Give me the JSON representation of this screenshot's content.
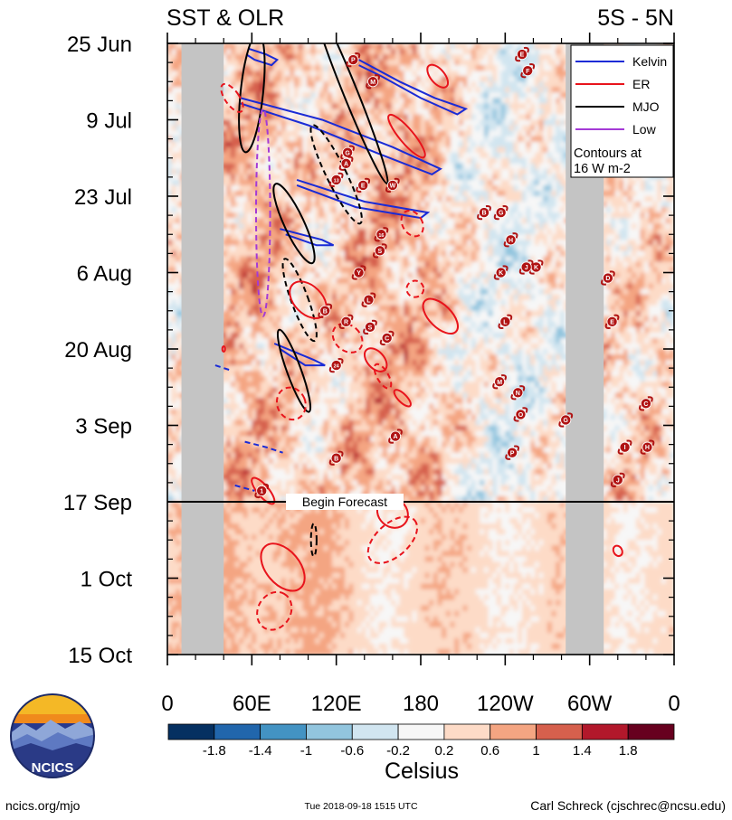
{
  "title_left": "SST & OLR",
  "title_right": "5S - 5N",
  "footer": {
    "site": "ncics.org/mjo",
    "timestamp": "Tue 2018-09-18 1515 UTC",
    "author": "Carl Schreck (cjschrec@ncsu.edu)"
  },
  "logo": {
    "text": "NCICS"
  },
  "colors": {
    "kelvin": "#1a2bd6",
    "er": "#e8141c",
    "mjo": "#000000",
    "low": "#a43ad6",
    "land": "#c4c4c4",
    "storm": "#b01313"
  },
  "legend": {
    "items": [
      {
        "label": "Kelvin",
        "color": "#1a2bd6"
      },
      {
        "label": "ER",
        "color": "#e8141c"
      },
      {
        "label": "MJO",
        "color": "#000000"
      },
      {
        "label": "Low",
        "color": "#a43ad6"
      }
    ],
    "note_line1": "Contours at",
    "note_line2": "16 W m-2",
    "position": "top-right"
  },
  "chart_data": {
    "type": "heatmap",
    "variable": "SST anomaly",
    "x_tick_labels": [
      "0",
      "60E",
      "120E",
      "180",
      "120W",
      "60W",
      "0"
    ],
    "x_tick_lons": [
      0,
      60,
      120,
      180,
      240,
      300,
      360
    ],
    "xlim": [
      0,
      360
    ],
    "y_tick_labels": [
      "25 Jun",
      "9 Jul",
      "23 Jul",
      "6 Aug",
      "20 Aug",
      "3 Sep",
      "17 Sep",
      "1 Oct",
      "15 Oct"
    ],
    "y_tick_days": [
      0,
      14,
      28,
      42,
      56,
      70,
      84,
      98,
      112
    ],
    "ylim_days": [
      0,
      112
    ],
    "forecast": {
      "day": 84,
      "label": "Begin Forecast"
    },
    "colorbar": {
      "label": "Celsius",
      "tick_labels": [
        "-1.8",
        "-1.4",
        "-1",
        "-0.6",
        "-0.2",
        "0.2",
        "0.6",
        "1",
        "1.4",
        "1.8"
      ],
      "bins": [
        -2.2,
        -1.8,
        -1.4,
        -1.0,
        -0.6,
        -0.2,
        0.2,
        0.6,
        1.0,
        1.4,
        1.8,
        2.2
      ],
      "colors": [
        "#053061",
        "#2166ac",
        "#4393c3",
        "#92c5de",
        "#d1e5f0",
        "#f7f7f7",
        "#fddbc7",
        "#f4a582",
        "#d6604d",
        "#b2182b",
        "#67001f"
      ]
    },
    "land_bands": [
      {
        "lon0": 10,
        "lon1": 40
      },
      {
        "lon0": 283,
        "lon1": 310
      }
    ],
    "contours": [
      {
        "type": "kelvin",
        "style": "solid",
        "path": [
          [
            58,
            1
          ],
          [
            70,
            2
          ],
          [
            78,
            3
          ],
          [
            74,
            4
          ],
          [
            62,
            3
          ],
          [
            56,
            2
          ]
        ]
      },
      {
        "type": "kelvin",
        "style": "solid",
        "path": [
          [
            136,
            3
          ],
          [
            165,
            7
          ],
          [
            190,
            10
          ],
          [
            212,
            12
          ],
          [
            206,
            13
          ],
          [
            180,
            10
          ],
          [
            152,
            6
          ],
          [
            136,
            4
          ]
        ]
      },
      {
        "type": "kelvin",
        "style": "solid",
        "path": [
          [
            52,
            10
          ],
          [
            110,
            14
          ],
          [
            160,
            19
          ],
          [
            194,
            23
          ],
          [
            188,
            24
          ],
          [
            148,
            20
          ],
          [
            100,
            15
          ],
          [
            52,
            11
          ]
        ]
      },
      {
        "type": "kelvin",
        "style": "solid",
        "path": [
          [
            92,
            25
          ],
          [
            140,
            29
          ],
          [
            185,
            31
          ],
          [
            180,
            32
          ],
          [
            134,
            30
          ],
          [
            92,
            26
          ]
        ]
      },
      {
        "type": "kelvin",
        "style": "solid",
        "path": [
          [
            80,
            34
          ],
          [
            110,
            36
          ],
          [
            118,
            37
          ],
          [
            106,
            37
          ],
          [
            84,
            35
          ]
        ]
      },
      {
        "type": "kelvin",
        "style": "solid",
        "path": [
          [
            76,
            55
          ],
          [
            104,
            58
          ],
          [
            112,
            59
          ],
          [
            98,
            59
          ],
          [
            80,
            56
          ]
        ]
      },
      {
        "type": "kelvin",
        "style": "dashed",
        "path": [
          [
            34,
            59
          ],
          [
            46,
            60
          ]
        ]
      },
      {
        "type": "kelvin",
        "style": "dashed",
        "path": [
          [
            55,
            73
          ],
          [
            70,
            74
          ],
          [
            82,
            75
          ]
        ]
      },
      {
        "type": "kelvin",
        "style": "dashed",
        "path": [
          [
            48,
            81
          ],
          [
            62,
            82
          ]
        ]
      },
      {
        "type": "mjo",
        "style": "solid",
        "ellipse": {
          "lon": 60,
          "day": 9,
          "rx": 8,
          "ry": 11,
          "rot": 6
        }
      },
      {
        "type": "mjo",
        "style": "solid",
        "ellipse": {
          "lon": 130,
          "day": 9,
          "rx": 5,
          "ry": 18,
          "rot": -22
        }
      },
      {
        "type": "mjo",
        "style": "dashed",
        "ellipse": {
          "lon": 120,
          "day": 24,
          "rx": 7,
          "ry": 10,
          "rot": -26
        }
      },
      {
        "type": "mjo",
        "style": "solid",
        "ellipse": {
          "lon": 90,
          "day": 33,
          "rx": 7,
          "ry": 8,
          "rot": -25
        }
      },
      {
        "type": "mjo",
        "style": "dashed",
        "ellipse": {
          "lon": 94,
          "day": 47,
          "rx": 6,
          "ry": 8,
          "rot": -20
        }
      },
      {
        "type": "mjo",
        "style": "solid",
        "ellipse": {
          "lon": 90,
          "day": 60,
          "rx": 5,
          "ry": 8,
          "rot": -20
        }
      },
      {
        "type": "mjo",
        "style": "dashed",
        "ellipse": {
          "lon": 104,
          "day": 91,
          "rx": 2,
          "ry": 3,
          "rot": 0
        }
      },
      {
        "type": "er",
        "style": "dashed",
        "ellipse": {
          "lon": 46,
          "day": 10,
          "rx": 5,
          "ry": 3,
          "rot": -35
        }
      },
      {
        "type": "er",
        "style": "solid",
        "ellipse": {
          "lon": 192,
          "day": 6,
          "rx": 5,
          "ry": 2.5,
          "rot": -40
        }
      },
      {
        "type": "er",
        "style": "solid",
        "ellipse": {
          "lon": 170,
          "day": 17,
          "rx": 5,
          "ry": 5,
          "rot": -40
        }
      },
      {
        "type": "er",
        "style": "dashed",
        "ellipse": {
          "lon": 174,
          "day": 33,
          "rx": 7,
          "ry": 2.5,
          "rot": -30
        }
      },
      {
        "type": "er",
        "style": "dashed",
        "ellipse": {
          "lon": 176,
          "day": 45,
          "rx": 6,
          "ry": 1.5,
          "rot": 0
        }
      },
      {
        "type": "er",
        "style": "solid",
        "ellipse": {
          "lon": 194,
          "day": 50,
          "rx": 8,
          "ry": 4,
          "rot": -45
        }
      },
      {
        "type": "er",
        "style": "dashed",
        "ellipse": {
          "lon": 128,
          "day": 54,
          "rx": 9,
          "ry": 3,
          "rot": -48
        }
      },
      {
        "type": "er",
        "style": "solid",
        "ellipse": {
          "lon": 148,
          "day": 58,
          "rx": 6,
          "ry": 2.5,
          "rot": -42
        }
      },
      {
        "type": "er",
        "style": "solid",
        "ellipse": {
          "lon": 100,
          "day": 47,
          "rx": 10,
          "ry": 4,
          "rot": -45
        }
      },
      {
        "type": "er",
        "style": "dashed",
        "ellipse": {
          "lon": 153,
          "day": 61,
          "rx": 4,
          "ry": 2.5,
          "rot": -30
        }
      },
      {
        "type": "er",
        "style": "dashed",
        "ellipse": {
          "lon": 88,
          "day": 66,
          "rx": 10,
          "ry": 3,
          "rot": -22
        }
      },
      {
        "type": "er",
        "style": "solid",
        "ellipse": {
          "lon": 167,
          "day": 65,
          "rx": 3,
          "ry": 2,
          "rot": -45
        }
      },
      {
        "type": "er",
        "style": "solid",
        "ellipse": {
          "lon": 68,
          "day": 82,
          "rx": 4,
          "ry": 3,
          "rot": -40
        }
      },
      {
        "type": "er",
        "style": "solid",
        "ellipse": {
          "lon": 160,
          "day": 86,
          "rx": 10,
          "ry": 3,
          "rot": -48
        }
      },
      {
        "type": "er",
        "style": "dashed",
        "ellipse": {
          "lon": 160,
          "day": 91,
          "rx": 21,
          "ry": 3,
          "rot": -42
        }
      },
      {
        "type": "er",
        "style": "solid",
        "ellipse": {
          "lon": 82,
          "day": 96,
          "rx": 12,
          "ry": 5,
          "rot": -40
        }
      },
      {
        "type": "er",
        "style": "dashed",
        "ellipse": {
          "lon": 76,
          "day": 104,
          "rx": 14,
          "ry": 3,
          "rot": -60
        }
      },
      {
        "type": "er",
        "style": "solid",
        "ellipse": {
          "lon": 320,
          "day": 93,
          "rx": 3,
          "ry": 1,
          "rot": -30
        }
      },
      {
        "type": "er",
        "style": "solid",
        "ellipse": {
          "lon": 40,
          "day": 56,
          "rx": 1,
          "ry": 0.5,
          "rot": 0
        }
      },
      {
        "type": "low",
        "style": "dashed",
        "ellipse": {
          "lon": 68,
          "day": 31,
          "rx": 5,
          "ry": 19,
          "rot": 0
        }
      }
    ],
    "storm_markers": [
      {
        "label": "P",
        "lon": 132,
        "day": 3
      },
      {
        "label": "E",
        "lon": 252,
        "day": 2
      },
      {
        "label": "F",
        "lon": 256,
        "day": 5
      },
      {
        "label": "M",
        "lon": 146,
        "day": 7
      },
      {
        "label": "G",
        "lon": 128,
        "day": 20
      },
      {
        "label": "A",
        "lon": 127,
        "day": 22
      },
      {
        "label": "13",
        "lon": 120,
        "day": 25
      },
      {
        "label": "E",
        "lon": 139,
        "day": 26
      },
      {
        "label": "W",
        "lon": 160,
        "day": 26
      },
      {
        "label": "B",
        "lon": 225,
        "day": 31
      },
      {
        "label": "G",
        "lon": 237,
        "day": 31
      },
      {
        "label": "16",
        "lon": 152,
        "day": 35
      },
      {
        "label": "S",
        "lon": 151,
        "day": 38
      },
      {
        "label": "H",
        "lon": 244,
        "day": 36
      },
      {
        "label": "K",
        "lon": 262,
        "day": 41
      },
      {
        "label": "Y",
        "lon": 136,
        "day": 42
      },
      {
        "label": "K",
        "lon": 237,
        "day": 42
      },
      {
        "label": "J",
        "lon": 255,
        "day": 41
      },
      {
        "label": "D",
        "lon": 313,
        "day": 43
      },
      {
        "label": "L",
        "lon": 143,
        "day": 47
      },
      {
        "label": "B",
        "lon": 112,
        "day": 49
      },
      {
        "label": "R",
        "lon": 127,
        "day": 51
      },
      {
        "label": "S",
        "lon": 144,
        "day": 52
      },
      {
        "label": "L",
        "lon": 240,
        "day": 51
      },
      {
        "label": "E",
        "lon": 316,
        "day": 51
      },
      {
        "label": "C",
        "lon": 156,
        "day": 54
      },
      {
        "label": "24",
        "lon": 120,
        "day": 59
      },
      {
        "label": "M",
        "lon": 236,
        "day": 62
      },
      {
        "label": "N",
        "lon": 249,
        "day": 64
      },
      {
        "label": "O",
        "lon": 251,
        "day": 68
      },
      {
        "label": "G",
        "lon": 283,
        "day": 69
      },
      {
        "label": "C",
        "lon": 340,
        "day": 66
      },
      {
        "label": "A",
        "lon": 162,
        "day": 72
      },
      {
        "label": "B",
        "lon": 120,
        "day": 76
      },
      {
        "label": "P",
        "lon": 245,
        "day": 75
      },
      {
        "label": "I",
        "lon": 325,
        "day": 74
      },
      {
        "label": "H",
        "lon": 341,
        "day": 74
      },
      {
        "label": "J",
        "lon": 320,
        "day": 80
      },
      {
        "label": "1",
        "lon": 67,
        "day": 82
      }
    ]
  }
}
